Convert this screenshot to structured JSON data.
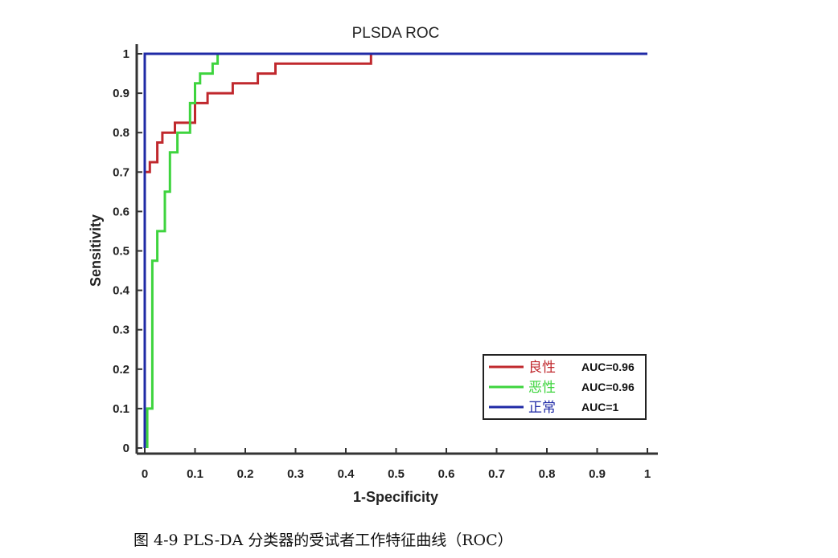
{
  "chart_data": {
    "type": "line",
    "title": "PLSDA ROC",
    "xlabel": "1-Specificity",
    "ylabel": "Sensitivity",
    "xlim": [
      0,
      1
    ],
    "ylim": [
      0,
      1
    ],
    "xticks": [
      "0",
      "0.1",
      "0.2",
      "0.3",
      "0.4",
      "0.5",
      "0.6",
      "0.7",
      "0.8",
      "0.9",
      "1"
    ],
    "yticks": [
      "0",
      "0.1",
      "0.2",
      "0.3",
      "0.4",
      "0.5",
      "0.6",
      "0.7",
      "0.8",
      "0.9",
      "1"
    ],
    "grid": false,
    "legend_position": "bottom-right",
    "series": [
      {
        "name": "良性",
        "auc": "AUC=0.96",
        "color": "#c0282d",
        "points": [
          [
            0,
            0.7
          ],
          [
            0.01,
            0.7
          ],
          [
            0.01,
            0.725
          ],
          [
            0.025,
            0.725
          ],
          [
            0.025,
            0.775
          ],
          [
            0.035,
            0.775
          ],
          [
            0.035,
            0.8
          ],
          [
            0.06,
            0.8
          ],
          [
            0.06,
            0.825
          ],
          [
            0.1,
            0.825
          ],
          [
            0.1,
            0.875
          ],
          [
            0.125,
            0.875
          ],
          [
            0.125,
            0.9
          ],
          [
            0.175,
            0.9
          ],
          [
            0.175,
            0.925
          ],
          [
            0.225,
            0.925
          ],
          [
            0.225,
            0.95
          ],
          [
            0.26,
            0.95
          ],
          [
            0.26,
            0.975
          ],
          [
            0.45,
            0.975
          ],
          [
            0.45,
            1.0
          ],
          [
            1.0,
            1.0
          ]
        ]
      },
      {
        "name": "恶性",
        "auc": "AUC=0.96",
        "color": "#3ed43e",
        "points": [
          [
            0.005,
            0
          ],
          [
            0.005,
            0.1
          ],
          [
            0.015,
            0.1
          ],
          [
            0.015,
            0.475
          ],
          [
            0.025,
            0.475
          ],
          [
            0.025,
            0.55
          ],
          [
            0.04,
            0.55
          ],
          [
            0.04,
            0.65
          ],
          [
            0.05,
            0.65
          ],
          [
            0.05,
            0.75
          ],
          [
            0.065,
            0.75
          ],
          [
            0.065,
            0.8
          ],
          [
            0.09,
            0.8
          ],
          [
            0.09,
            0.875
          ],
          [
            0.1,
            0.875
          ],
          [
            0.1,
            0.925
          ],
          [
            0.11,
            0.925
          ],
          [
            0.11,
            0.95
          ],
          [
            0.135,
            0.95
          ],
          [
            0.135,
            0.975
          ],
          [
            0.145,
            0.975
          ],
          [
            0.145,
            1.0
          ],
          [
            0.15,
            1.0
          ]
        ]
      },
      {
        "name": "正常",
        "auc": "AUC=1",
        "color": "#1f2aa6",
        "points": [
          [
            0,
            0
          ],
          [
            0,
            1.0
          ],
          [
            1.0,
            1.0
          ]
        ]
      }
    ]
  },
  "caption": "图 4-9 PLS-DA 分类器的受试者工作特征曲线（ROC）"
}
